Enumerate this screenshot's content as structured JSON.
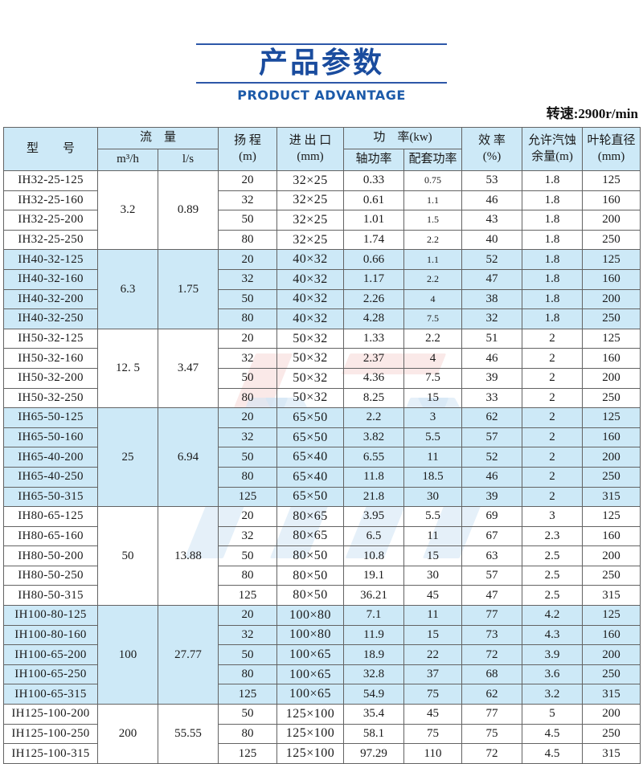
{
  "title": {
    "cn": "产品参数",
    "en": "PRODUCT ADVANTAGE"
  },
  "speed_note": "转速:2900r/min",
  "colors": {
    "accent_blue": "#1a4c9e",
    "stripe_blue": "#cde9f7",
    "border_gray": "#636363"
  },
  "table": {
    "headers": {
      "model": "型　　号",
      "flow": "流　量",
      "flow_m3h": "m³/h",
      "flow_ls": "l/s",
      "head": "扬 程\n(m)",
      "ports": "进 出 口\n(mm)",
      "power": "功　率(kw)",
      "shaft": "轴功率",
      "matched": "配套功率",
      "efficiency": "效 率\n(%)",
      "npsh": "允许汽蚀\n余量(m)",
      "impeller": "叶轮直径\n(mm)"
    },
    "groups": [
      {
        "flow_m3h": "3.2",
        "flow_ls": "0.89",
        "shaded": false,
        "small_matched": true,
        "rows": [
          {
            "model": "IH32-25-125",
            "head": "20",
            "ports": "32×25",
            "shaft_kw": "0.33",
            "matched_kw": "0.75",
            "eff": "53",
            "npsh": "1.8",
            "impeller": "125"
          },
          {
            "model": "IH32-25-160",
            "head": "32",
            "ports": "32×25",
            "shaft_kw": "0.61",
            "matched_kw": "1.1",
            "eff": "46",
            "npsh": "1.8",
            "impeller": "160"
          },
          {
            "model": "IH32-25-200",
            "head": "50",
            "ports": "32×25",
            "shaft_kw": "1.01",
            "matched_kw": "1.5",
            "eff": "43",
            "npsh": "1.8",
            "impeller": "200"
          },
          {
            "model": "IH32-25-250",
            "head": "80",
            "ports": "32×25",
            "shaft_kw": "1.74",
            "matched_kw": "2.2",
            "eff": "40",
            "npsh": "1.8",
            "impeller": "250"
          }
        ]
      },
      {
        "flow_m3h": "6.3",
        "flow_ls": "1.75",
        "shaded": true,
        "small_matched": true,
        "rows": [
          {
            "model": "IH40-32-125",
            "head": "20",
            "ports": "40×32",
            "shaft_kw": "0.66",
            "matched_kw": "1.1",
            "eff": "52",
            "npsh": "1.8",
            "impeller": "125"
          },
          {
            "model": "IH40-32-160",
            "head": "32",
            "ports": "40×32",
            "shaft_kw": "1.17",
            "matched_kw": "2.2",
            "eff": "47",
            "npsh": "1.8",
            "impeller": "160"
          },
          {
            "model": "IH40-32-200",
            "head": "50",
            "ports": "40×32",
            "shaft_kw": "2.26",
            "matched_kw": "4",
            "eff": "38",
            "npsh": "1.8",
            "impeller": "200"
          },
          {
            "model": "IH40-32-250",
            "head": "80",
            "ports": "40×32",
            "shaft_kw": "4.28",
            "matched_kw": "7.5",
            "eff": "32",
            "npsh": "1.8",
            "impeller": "250"
          }
        ]
      },
      {
        "flow_m3h": "12. 5",
        "flow_ls": "3.47",
        "shaded": false,
        "small_matched": false,
        "rows": [
          {
            "model": "IH50-32-125",
            "head": "20",
            "ports": "50×32",
            "shaft_kw": "1.33",
            "matched_kw": "2.2",
            "eff": "51",
            "npsh": "2",
            "impeller": "125"
          },
          {
            "model": "IH50-32-160",
            "head": "32",
            "ports": "50×32",
            "shaft_kw": "2.37",
            "matched_kw": "4",
            "eff": "46",
            "npsh": "2",
            "impeller": "160"
          },
          {
            "model": "IH50-32-200",
            "head": "50",
            "ports": "50×32",
            "shaft_kw": "4.36",
            "matched_kw": "7.5",
            "eff": "39",
            "npsh": "2",
            "impeller": "200"
          },
          {
            "model": "IH50-32-250",
            "head": "80",
            "ports": "50×32",
            "shaft_kw": "8.25",
            "matched_kw": "15",
            "eff": "33",
            "npsh": "2",
            "impeller": "250"
          }
        ]
      },
      {
        "flow_m3h": "25",
        "flow_ls": "6.94",
        "shaded": true,
        "small_matched": false,
        "rows": [
          {
            "model": "IH65-50-125",
            "head": "20",
            "ports": "65×50",
            "shaft_kw": "2.2",
            "matched_kw": "3",
            "eff": "62",
            "npsh": "2",
            "impeller": "125"
          },
          {
            "model": "IH65-50-160",
            "head": "32",
            "ports": "65×50",
            "shaft_kw": "3.82",
            "matched_kw": "5.5",
            "eff": "57",
            "npsh": "2",
            "impeller": "160"
          },
          {
            "model": "IH65-40-200",
            "head": "50",
            "ports": "65×40",
            "shaft_kw": "6.55",
            "matched_kw": "11",
            "eff": "52",
            "npsh": "2",
            "impeller": "200"
          },
          {
            "model": "IH65-40-250",
            "head": "80",
            "ports": "65×40",
            "shaft_kw": "11.8",
            "matched_kw": "18.5",
            "eff": "46",
            "npsh": "2",
            "impeller": "250"
          },
          {
            "model": "IH65-50-315",
            "head": "125",
            "ports": "65×50",
            "shaft_kw": "21.8",
            "matched_kw": "30",
            "eff": "39",
            "npsh": "2",
            "impeller": "315"
          }
        ]
      },
      {
        "flow_m3h": "50",
        "flow_ls": "13.88",
        "shaded": false,
        "small_matched": false,
        "rows": [
          {
            "model": "IH80-65-125",
            "head": "20",
            "ports": "80×65",
            "shaft_kw": "3.95",
            "matched_kw": "5.5",
            "eff": "69",
            "npsh": "3",
            "impeller": "125"
          },
          {
            "model": "IH80-65-160",
            "head": "32",
            "ports": "80×65",
            "shaft_kw": "6.5",
            "matched_kw": "11",
            "eff": "67",
            "npsh": "2.3",
            "impeller": "160"
          },
          {
            "model": "IH80-50-200",
            "head": "50",
            "ports": "80×50",
            "shaft_kw": "10.8",
            "matched_kw": "15",
            "eff": "63",
            "npsh": "2.5",
            "impeller": "200"
          },
          {
            "model": "IH80-50-250",
            "head": "80",
            "ports": "80×50",
            "shaft_kw": "19.1",
            "matched_kw": "30",
            "eff": "57",
            "npsh": "2.5",
            "impeller": "250"
          },
          {
            "model": "IH80-50-315",
            "head": "125",
            "ports": "80×50",
            "shaft_kw": "36.21",
            "matched_kw": "45",
            "eff": "47",
            "npsh": "2.5",
            "impeller": "315"
          }
        ]
      },
      {
        "flow_m3h": "100",
        "flow_ls": "27.77",
        "shaded": true,
        "small_matched": false,
        "rows": [
          {
            "model": "IH100-80-125",
            "head": "20",
            "ports": "100×80",
            "shaft_kw": "7.1",
            "matched_kw": "11",
            "eff": "77",
            "npsh": "4.2",
            "impeller": "125"
          },
          {
            "model": "IH100-80-160",
            "head": "32",
            "ports": "100×80",
            "shaft_kw": "11.9",
            "matched_kw": "15",
            "eff": "73",
            "npsh": "4.3",
            "impeller": "160"
          },
          {
            "model": "IH100-65-200",
            "head": "50",
            "ports": "100×65",
            "shaft_kw": "18.9",
            "matched_kw": "22",
            "eff": "72",
            "npsh": "3.9",
            "impeller": "200"
          },
          {
            "model": "IH100-65-250",
            "head": "80",
            "ports": "100×65",
            "shaft_kw": "32.8",
            "matched_kw": "37",
            "eff": "68",
            "npsh": "3.6",
            "impeller": "250"
          },
          {
            "model": "IH100-65-315",
            "head": "125",
            "ports": "100×65",
            "shaft_kw": "54.9",
            "matched_kw": "75",
            "eff": "62",
            "npsh": "3.2",
            "impeller": "315"
          }
        ]
      },
      {
        "flow_m3h": "200",
        "flow_ls": "55.55",
        "shaded": false,
        "small_matched": false,
        "rows": [
          {
            "model": "IH125-100-200",
            "head": "50",
            "ports": "125×100",
            "shaft_kw": "35.4",
            "matched_kw": "45",
            "eff": "77",
            "npsh": "5",
            "impeller": "200"
          },
          {
            "model": "IH125-100-250",
            "head": "80",
            "ports": "125×100",
            "shaft_kw": "58.1",
            "matched_kw": "75",
            "eff": "75",
            "npsh": "4.5",
            "impeller": "250"
          },
          {
            "model": "IH125-100-315",
            "head": "125",
            "ports": "125×100",
            "shaft_kw": "97.29",
            "matched_kw": "110",
            "eff": "72",
            "npsh": "4.5",
            "impeller": "315"
          }
        ]
      }
    ]
  }
}
